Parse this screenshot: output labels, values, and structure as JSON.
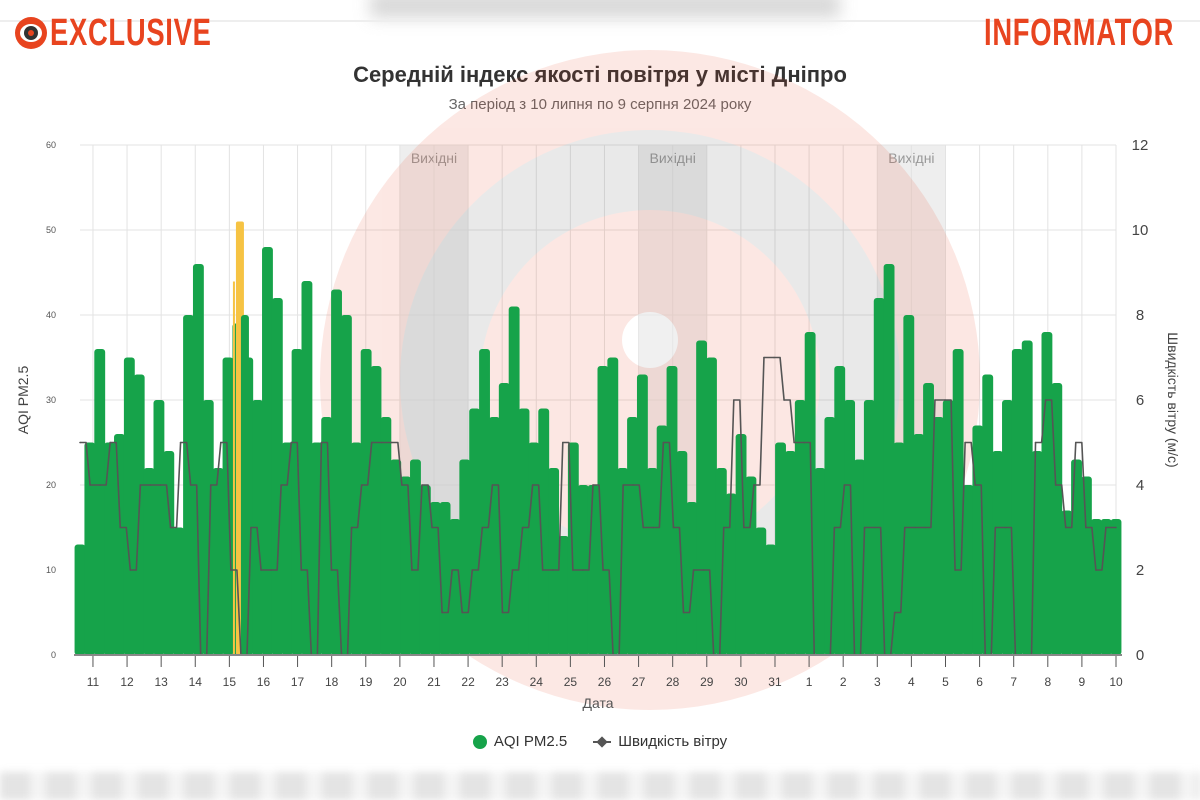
{
  "header": {
    "logo_left": "EXCLUSIVE",
    "logo_right": "INFORMATOR",
    "brand_color": "#e8441f"
  },
  "chart_data": {
    "type": "bar",
    "title": "Середній індекс якості повітря у місті Дніпро",
    "subtitle": "За період з 10 липня по 9 серпня 2024 року",
    "xlabel": "Дата",
    "ylabel": "AQI PM2.5",
    "y2label": "Швидкість вітру (м/с)",
    "ylim": [
      0,
      60
    ],
    "y2lim": [
      0,
      12
    ],
    "yticks": [
      "0",
      "10",
      "20",
      "30",
      "40",
      "50",
      "60"
    ],
    "y2ticks": [
      "0",
      "2",
      "4",
      "6",
      "8",
      "10",
      "12"
    ],
    "x_unit": "days since 10 July 2024 00:00",
    "xlim": [
      0.62,
      31.0
    ],
    "xticks": [
      {
        "day": 1,
        "label": "11"
      },
      {
        "day": 2,
        "label": "12"
      },
      {
        "day": 3,
        "label": "13"
      },
      {
        "day": 4,
        "label": "14"
      },
      {
        "day": 5,
        "label": "15"
      },
      {
        "day": 6,
        "label": "16"
      },
      {
        "day": 7,
        "label": "17"
      },
      {
        "day": 8,
        "label": "18"
      },
      {
        "day": 9,
        "label": "19"
      },
      {
        "day": 10,
        "label": "20"
      },
      {
        "day": 11,
        "label": "21"
      },
      {
        "day": 12,
        "label": "22"
      },
      {
        "day": 13,
        "label": "23"
      },
      {
        "day": 14,
        "label": "24"
      },
      {
        "day": 15,
        "label": "25"
      },
      {
        "day": 16,
        "label": "26"
      },
      {
        "day": 17,
        "label": "27"
      },
      {
        "day": 18,
        "label": "28"
      },
      {
        "day": 19,
        "label": "29"
      },
      {
        "day": 20,
        "label": "30"
      },
      {
        "day": 21,
        "label": "31"
      },
      {
        "day": 22,
        "label": "1"
      },
      {
        "day": 23,
        "label": "2"
      },
      {
        "day": 24,
        "label": "3"
      },
      {
        "day": 25,
        "label": "4"
      },
      {
        "day": 26,
        "label": "5"
      },
      {
        "day": 27,
        "label": "6"
      },
      {
        "day": 28,
        "label": "7"
      },
      {
        "day": 29,
        "label": "8"
      },
      {
        "day": 30,
        "label": "9"
      },
      {
        "day": 31,
        "label": "10"
      }
    ],
    "weekend_bands": [
      {
        "from": 10,
        "to": 12,
        "label": "Вихідні"
      },
      {
        "from": 17,
        "to": 19,
        "label": "Вихідні"
      },
      {
        "from": 24,
        "to": 26,
        "label": "Вихідні"
      }
    ],
    "highlight": {
      "day": 5.31,
      "value": 51,
      "color": "#f6c343"
    },
    "grid": true,
    "legend_position": "bottom",
    "series": [
      {
        "name": "AQI PM2.5",
        "axis": "left",
        "color": "#16a34a",
        "values": [
          13,
          25,
          36,
          25,
          26,
          35,
          33,
          22,
          30,
          24,
          15,
          40,
          46,
          30,
          22,
          35,
          39,
          35,
          30,
          48,
          42,
          25,
          36,
          44,
          25,
          28,
          43,
          40,
          25,
          36,
          34,
          28,
          23,
          21,
          23,
          20,
          18,
          18,
          16,
          23,
          29,
          36,
          28,
          32,
          41,
          29,
          25,
          29,
          22,
          14,
          25,
          20,
          20,
          34,
          35,
          22,
          28,
          33,
          22,
          27,
          34,
          24,
          18,
          37,
          35,
          22,
          19,
          26,
          21,
          15,
          13,
          25,
          24,
          30,
          38,
          22,
          28,
          34,
          30,
          23,
          30,
          42,
          46,
          25,
          40,
          26,
          32,
          28,
          30,
          36,
          20,
          27,
          33,
          24,
          30,
          36,
          37,
          24,
          38,
          32,
          17,
          23,
          21,
          16,
          16,
          16
        ]
      },
      {
        "name": "Швидкість вітру",
        "axis": "right",
        "color": "#555555",
        "values": [
          5,
          4,
          4,
          5,
          3,
          2,
          4,
          4,
          4,
          3,
          5,
          4,
          0,
          4,
          5,
          2,
          0,
          3,
          2,
          2,
          4,
          5,
          2,
          0,
          5,
          2,
          0,
          3,
          4,
          5,
          5,
          5,
          4,
          2,
          4,
          3,
          1,
          2,
          1,
          2,
          3,
          4,
          1,
          2,
          3,
          4,
          2,
          2,
          5,
          2,
          2,
          4,
          2,
          0,
          4,
          4,
          3,
          3,
          5,
          3,
          1,
          2,
          2,
          0,
          3,
          6,
          3,
          4,
          7,
          7,
          6,
          5,
          5,
          0,
          0,
          3,
          4,
          0,
          3,
          3,
          0,
          1,
          3,
          3,
          3,
          6,
          6,
          2,
          5,
          4,
          0,
          3,
          3,
          0,
          0,
          5,
          6,
          4,
          3,
          5,
          3,
          2,
          3,
          3
        ]
      }
    ]
  }
}
